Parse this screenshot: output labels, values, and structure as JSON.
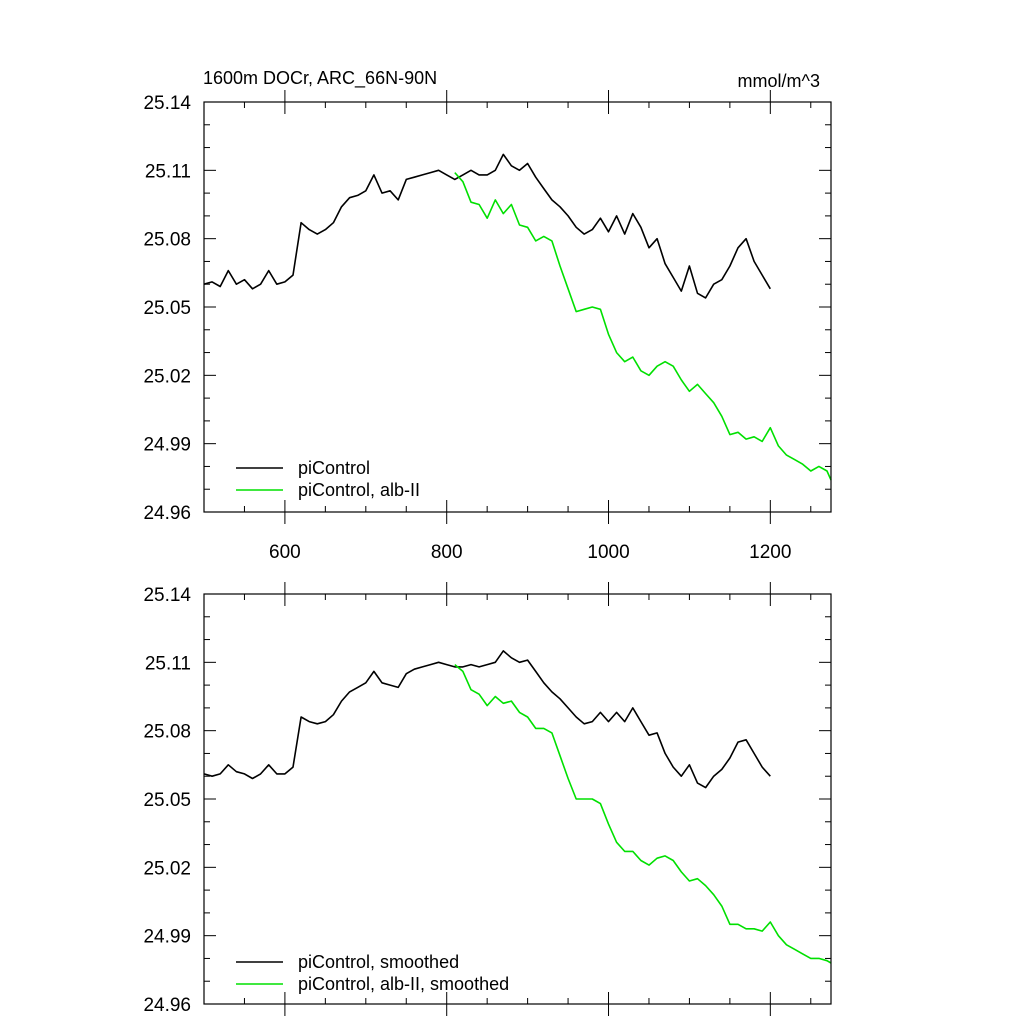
{
  "colors": {
    "black": "#000000",
    "green": "#00e000"
  },
  "chart_data": [
    {
      "type": "line",
      "title": "1600m DOCr, ARC_66N-90N",
      "units": "mmol/m^3",
      "xlim": [
        500,
        1275
      ],
      "ylim": [
        24.96,
        25.14
      ],
      "xticks": [
        600,
        800,
        1000,
        1200
      ],
      "xtick_labels": [
        "600",
        "800",
        "1000",
        "1200"
      ],
      "yticks": [
        24.96,
        24.99,
        25.02,
        25.05,
        25.08,
        25.11,
        25.14
      ],
      "ytick_labels": [
        "24.96",
        "24.99",
        "25.02",
        "25.05",
        "25.08",
        "25.11",
        "25.14"
      ],
      "legend_position": "bottom-left",
      "series": [
        {
          "name": "piControl",
          "color": "#000000",
          "x": [
            500,
            510,
            520,
            530,
            540,
            550,
            560,
            570,
            580,
            590,
            600,
            610,
            620,
            630,
            640,
            650,
            660,
            670,
            680,
            690,
            700,
            710,
            720,
            730,
            740,
            750,
            760,
            770,
            780,
            790,
            800,
            810,
            820,
            830,
            840,
            850,
            860,
            870,
            880,
            890,
            900,
            910,
            920,
            930,
            940,
            950,
            960,
            970,
            980,
            990,
            1000,
            1010,
            1020,
            1030,
            1040,
            1050,
            1060,
            1070,
            1080,
            1090,
            1100,
            1110,
            1120,
            1130,
            1140,
            1150,
            1160,
            1170,
            1180,
            1190,
            1200
          ],
          "y": [
            25.06,
            25.061,
            25.059,
            25.066,
            25.06,
            25.062,
            25.058,
            25.06,
            25.066,
            25.06,
            25.061,
            25.064,
            25.087,
            25.084,
            25.082,
            25.084,
            25.087,
            25.094,
            25.098,
            25.099,
            25.101,
            25.108,
            25.1,
            25.101,
            25.097,
            25.106,
            25.107,
            25.108,
            25.109,
            25.11,
            25.108,
            25.106,
            25.108,
            25.11,
            25.108,
            25.108,
            25.11,
            25.117,
            25.112,
            25.11,
            25.113,
            25.107,
            25.102,
            25.097,
            25.094,
            25.09,
            25.085,
            25.082,
            25.084,
            25.089,
            25.083,
            25.09,
            25.082,
            25.091,
            25.085,
            25.076,
            25.08,
            25.069,
            25.063,
            25.057,
            25.068,
            25.056,
            25.054,
            25.06,
            25.062,
            25.068,
            25.076,
            25.08,
            25.07,
            25.064,
            25.058
          ]
        },
        {
          "name": "piControl, alb-II",
          "color": "#00e000",
          "x": [
            810,
            820,
            830,
            840,
            850,
            860,
            870,
            880,
            890,
            900,
            910,
            920,
            930,
            940,
            950,
            960,
            970,
            980,
            990,
            1000,
            1010,
            1020,
            1030,
            1040,
            1050,
            1060,
            1070,
            1080,
            1090,
            1100,
            1110,
            1120,
            1130,
            1140,
            1150,
            1160,
            1170,
            1180,
            1190,
            1200,
            1210,
            1220,
            1230,
            1240,
            1250,
            1260,
            1270,
            1275
          ],
          "y": [
            25.109,
            25.105,
            25.096,
            25.095,
            25.089,
            25.097,
            25.091,
            25.095,
            25.086,
            25.085,
            25.079,
            25.081,
            25.079,
            25.068,
            25.058,
            25.048,
            25.049,
            25.05,
            25.049,
            25.038,
            25.03,
            25.026,
            25.028,
            25.022,
            25.02,
            25.024,
            25.026,
            25.024,
            25.018,
            25.013,
            25.016,
            25.012,
            25.008,
            25.002,
            24.994,
            24.995,
            24.992,
            24.993,
            24.991,
            24.997,
            24.989,
            24.985,
            24.983,
            24.981,
            24.978,
            24.98,
            24.978,
            24.974
          ]
        }
      ]
    },
    {
      "type": "line",
      "xlim": [
        500,
        1275
      ],
      "ylim": [
        24.96,
        25.14
      ],
      "yticks": [
        24.96,
        24.99,
        25.02,
        25.05,
        25.08,
        25.11,
        25.14
      ],
      "ytick_labels": [
        "24.96",
        "24.99",
        "25.02",
        "25.05",
        "25.08",
        "25.11",
        "25.14"
      ],
      "legend_position": "bottom-left",
      "series": [
        {
          "name": "piControl, smoothed",
          "color": "#000000",
          "x": [
            500,
            510,
            520,
            530,
            540,
            550,
            560,
            570,
            580,
            590,
            600,
            610,
            620,
            630,
            640,
            650,
            660,
            670,
            680,
            690,
            700,
            710,
            720,
            730,
            740,
            750,
            760,
            770,
            780,
            790,
            800,
            810,
            820,
            830,
            840,
            850,
            860,
            870,
            880,
            890,
            900,
            910,
            920,
            930,
            940,
            950,
            960,
            970,
            980,
            990,
            1000,
            1010,
            1020,
            1030,
            1040,
            1050,
            1060,
            1070,
            1080,
            1090,
            1100,
            1110,
            1120,
            1130,
            1140,
            1150,
            1160,
            1170,
            1180,
            1190,
            1200
          ],
          "y": [
            25.061,
            25.06,
            25.061,
            25.065,
            25.062,
            25.061,
            25.059,
            25.061,
            25.065,
            25.061,
            25.061,
            25.064,
            25.086,
            25.084,
            25.083,
            25.084,
            25.087,
            25.093,
            25.097,
            25.099,
            25.101,
            25.106,
            25.101,
            25.1,
            25.099,
            25.105,
            25.107,
            25.108,
            25.109,
            25.11,
            25.109,
            25.108,
            25.108,
            25.109,
            25.108,
            25.109,
            25.11,
            25.115,
            25.112,
            25.11,
            25.111,
            25.106,
            25.101,
            25.097,
            25.094,
            25.09,
            25.086,
            25.083,
            25.084,
            25.088,
            25.084,
            25.088,
            25.084,
            25.09,
            25.084,
            25.078,
            25.079,
            25.07,
            25.064,
            25.06,
            25.065,
            25.057,
            25.055,
            25.06,
            25.063,
            25.068,
            25.075,
            25.076,
            25.07,
            25.064,
            25.06
          ]
        },
        {
          "name": "piControl, alb-II, smoothed",
          "color": "#00e000",
          "x": [
            810,
            820,
            830,
            840,
            850,
            860,
            870,
            880,
            890,
            900,
            910,
            920,
            930,
            940,
            950,
            960,
            970,
            980,
            990,
            1000,
            1010,
            1020,
            1030,
            1040,
            1050,
            1060,
            1070,
            1080,
            1090,
            1100,
            1110,
            1120,
            1130,
            1140,
            1150,
            1160,
            1170,
            1180,
            1190,
            1200,
            1210,
            1220,
            1230,
            1240,
            1250,
            1260,
            1270,
            1275
          ],
          "y": [
            25.109,
            25.106,
            25.098,
            25.096,
            25.091,
            25.095,
            25.092,
            25.093,
            25.088,
            25.086,
            25.081,
            25.081,
            25.079,
            25.069,
            25.059,
            25.05,
            25.05,
            25.05,
            25.048,
            25.039,
            25.031,
            25.027,
            25.027,
            25.023,
            25.021,
            25.024,
            25.025,
            25.023,
            25.018,
            25.014,
            25.015,
            25.012,
            25.008,
            25.003,
            24.995,
            24.995,
            24.993,
            24.993,
            24.992,
            24.996,
            24.99,
            24.986,
            24.984,
            24.982,
            24.98,
            24.98,
            24.979,
            24.978
          ]
        }
      ]
    }
  ]
}
